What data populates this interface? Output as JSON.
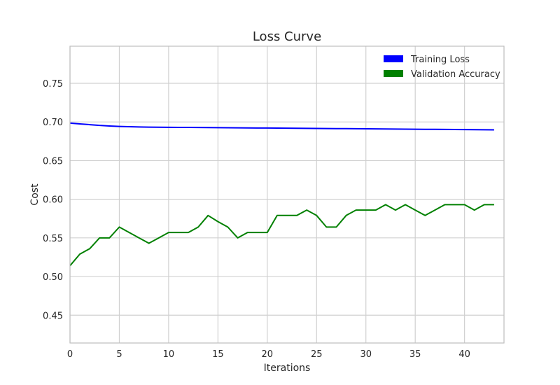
{
  "chart_data": {
    "type": "line",
    "title": "Loss Curve",
    "xlabel": "Iterations",
    "ylabel": "Cost",
    "xlim": [
      0,
      44
    ],
    "ylim": [
      0.414,
      0.798
    ],
    "x_ticks": [
      0,
      5,
      10,
      15,
      20,
      25,
      30,
      35,
      40
    ],
    "x_tick_labels": [
      "0",
      "5",
      "10",
      "15",
      "20",
      "25",
      "30",
      "35",
      "40"
    ],
    "y_ticks": [
      0.45,
      0.5,
      0.55,
      0.6,
      0.65,
      0.7,
      0.75
    ],
    "y_tick_labels": [
      "0.45",
      "0.50",
      "0.55",
      "0.60",
      "0.65",
      "0.70",
      "0.75"
    ],
    "grid": true,
    "legend_position": "top-right",
    "x": [
      0,
      1,
      2,
      3,
      4,
      5,
      6,
      7,
      8,
      9,
      10,
      11,
      12,
      13,
      14,
      15,
      16,
      17,
      18,
      19,
      20,
      21,
      22,
      23,
      24,
      25,
      26,
      27,
      28,
      29,
      30,
      31,
      32,
      33,
      34,
      35,
      36,
      37,
      38,
      39,
      40,
      41,
      42,
      43
    ],
    "series": [
      {
        "name": "Training Loss",
        "color": "#0000ff",
        "values": [
          0.6985,
          0.6975,
          0.6965,
          0.6955,
          0.6948,
          0.6942,
          0.6938,
          0.6935,
          0.6933,
          0.6932,
          0.6931,
          0.693,
          0.6929,
          0.6928,
          0.6927,
          0.6926,
          0.6925,
          0.6924,
          0.6923,
          0.6922,
          0.6921,
          0.692,
          0.6919,
          0.6918,
          0.6917,
          0.6916,
          0.6915,
          0.6914,
          0.6913,
          0.6912,
          0.6911,
          0.691,
          0.6909,
          0.6908,
          0.6907,
          0.6906,
          0.6905,
          0.6904,
          0.6903,
          0.6902,
          0.6901,
          0.69,
          0.6899,
          0.6898
        ]
      },
      {
        "name": "Validation Accuracy",
        "color": "#008000",
        "values": [
          0.514,
          0.529,
          0.536,
          0.55,
          0.55,
          0.564,
          0.557,
          0.55,
          0.543,
          0.55,
          0.557,
          0.557,
          0.557,
          0.564,
          0.579,
          0.571,
          0.564,
          0.55,
          0.557,
          0.557,
          0.557,
          0.579,
          0.579,
          0.579,
          0.586,
          0.579,
          0.564,
          0.564,
          0.579,
          0.586,
          0.586,
          0.586,
          0.593,
          0.586,
          0.593,
          0.586,
          0.579,
          0.586,
          0.593,
          0.593,
          0.593,
          0.586,
          0.593,
          0.593
        ]
      }
    ]
  }
}
